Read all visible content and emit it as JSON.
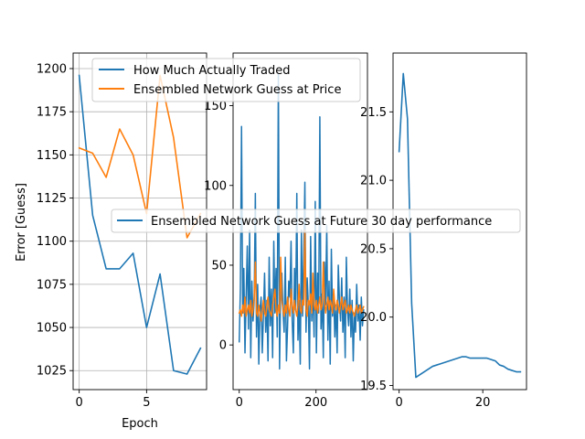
{
  "chart_data": [
    {
      "type": "line",
      "xlabel": "Epoch",
      "ylabel": "Error [Guess]",
      "grid": true,
      "xlim": [
        -0.45,
        9.45
      ],
      "ylim": [
        1014,
        1209
      ],
      "xticks": [
        0,
        5
      ],
      "yticks": [
        1025,
        1050,
        1075,
        1100,
        1125,
        1150,
        1175,
        1200
      ],
      "legend": "top-right",
      "x": [
        0,
        1,
        2,
        3,
        4,
        5,
        6,
        7,
        8,
        9
      ],
      "series": [
        {
          "name": "How Much Actually Traded",
          "color": "#1f77b4",
          "values": [
            1196,
            1115,
            1084,
            1084,
            1093,
            1050,
            1081,
            1025,
            1023,
            1038
          ]
        },
        {
          "name": "Ensembled Network Guess at Price",
          "color": "#ff7f0e",
          "values": [
            1154,
            1151,
            1137,
            1165,
            1150,
            1116,
            1196,
            1160,
            1102,
            1116
          ]
        }
      ]
    },
    {
      "type": "line",
      "grid": false,
      "xlim": [
        -16,
        334
      ],
      "ylim": [
        -28,
        183
      ],
      "xticks": [
        0,
        200
      ],
      "yticks": [
        0,
        50,
        100,
        150
      ],
      "series": [
        {
          "color": "#1f77b4",
          "x": [
            0,
            3,
            6,
            9,
            12,
            15,
            18,
            21,
            24,
            27,
            30,
            33,
            36,
            39,
            42,
            45,
            48,
            51,
            54,
            57,
            60,
            63,
            66,
            69,
            72,
            75,
            78,
            81,
            84,
            87,
            90,
            93,
            96,
            99,
            102,
            105,
            108,
            111,
            114,
            117,
            120,
            123,
            126,
            129,
            132,
            135,
            138,
            141,
            144,
            147,
            150,
            153,
            156,
            159,
            162,
            165,
            168,
            171,
            174,
            177,
            180,
            183,
            186,
            189,
            192,
            195,
            198,
            201,
            204,
            207,
            210,
            213,
            216,
            219,
            222,
            225,
            228,
            231,
            234,
            237,
            240,
            243,
            246,
            249,
            252,
            255,
            258,
            261,
            264,
            267,
            270,
            273,
            276,
            279,
            282,
            285,
            288,
            291,
            294,
            297,
            300,
            303,
            306,
            309,
            312,
            315,
            318,
            321,
            324
          ],
          "values": [
            2,
            35,
            137,
            20,
            48,
            -5,
            30,
            62,
            10,
            72,
            -8,
            40,
            15,
            28,
            95,
            5,
            38,
            -12,
            22,
            30,
            -5,
            18,
            45,
            8,
            28,
            -10,
            55,
            12,
            35,
            -8,
            65,
            20,
            48,
            5,
            170,
            -15,
            38,
            45,
            22,
            8,
            55,
            -10,
            12,
            40,
            30,
            65,
            15,
            -5,
            48,
            22,
            95,
            3,
            28,
            -12,
            72,
            18,
            55,
            102,
            8,
            42,
            25,
            -15,
            68,
            15,
            38,
            5,
            90,
            -5,
            45,
            20,
            143,
            10,
            32,
            -8,
            52,
            25,
            75,
            3,
            40,
            -12,
            60,
            18,
            32,
            5,
            25,
            -5,
            50,
            28,
            15,
            42,
            8,
            30,
            -8,
            55,
            22,
            12,
            35,
            5,
            28,
            -10,
            20,
            8,
            38,
            15,
            25,
            3,
            30,
            12,
            22
          ]
        },
        {
          "color": "#ff7f0e",
          "x": [
            0,
            3,
            6,
            9,
            12,
            15,
            18,
            21,
            24,
            27,
            30,
            33,
            36,
            39,
            42,
            45,
            48,
            51,
            54,
            57,
            60,
            63,
            66,
            69,
            72,
            75,
            78,
            81,
            84,
            87,
            90,
            93,
            96,
            99,
            102,
            105,
            108,
            111,
            114,
            117,
            120,
            123,
            126,
            129,
            132,
            135,
            138,
            141,
            144,
            147,
            150,
            153,
            156,
            159,
            162,
            165,
            168,
            171,
            174,
            177,
            180,
            183,
            186,
            189,
            192,
            195,
            198,
            201,
            204,
            207,
            210,
            213,
            216,
            219,
            222,
            225,
            228,
            231,
            234,
            237,
            240,
            243,
            246,
            249,
            252,
            255,
            258,
            261,
            264,
            267,
            270,
            273,
            276,
            279,
            282,
            285,
            288,
            291,
            294,
            297,
            300,
            303,
            306,
            309,
            312,
            315,
            318,
            321,
            324
          ],
          "values": [
            20,
            22,
            18,
            25,
            20,
            30,
            18,
            22,
            25,
            20,
            28,
            18,
            22,
            30,
            52,
            20,
            18,
            25,
            20,
            15,
            22,
            28,
            20,
            18,
            25,
            30,
            22,
            20,
            18,
            25,
            30,
            35,
            22,
            18,
            25,
            20,
            55,
            28,
            22,
            18,
            25,
            20,
            30,
            22,
            18,
            35,
            25,
            20,
            28,
            22,
            18,
            25,
            38,
            22,
            20,
            28,
            25,
            72,
            22,
            18,
            28,
            25,
            32,
            20,
            45,
            25,
            22,
            28,
            20,
            25,
            30,
            22,
            25,
            52,
            28,
            20,
            25,
            30,
            22,
            28,
            25,
            20,
            35,
            25,
            22,
            28,
            25,
            20,
            25,
            30,
            22,
            25,
            28,
            20,
            22,
            25,
            20,
            25,
            22,
            20,
            18,
            22,
            25,
            20,
            22,
            25,
            20,
            22,
            24
          ]
        }
      ]
    },
    {
      "type": "line",
      "grid": false,
      "xlim": [
        -1.45,
        30.45
      ],
      "ylim": [
        19.47,
        21.93
      ],
      "xticks": [
        0,
        20
      ],
      "yticks": [
        19.5,
        20.0,
        20.5,
        21.0,
        21.5
      ],
      "legend": "center",
      "x": [
        0,
        1,
        2,
        3,
        4,
        5,
        6,
        7,
        8,
        9,
        10,
        11,
        12,
        13,
        14,
        15,
        16,
        17,
        18,
        19,
        20,
        21,
        22,
        23,
        24,
        25,
        26,
        27,
        28,
        29
      ],
      "series": [
        {
          "name": "Ensembled Network Guess at Future 30 day performance",
          "color": "#1f77b4",
          "values": [
            21.21,
            21.78,
            21.45,
            20.1,
            19.56,
            19.58,
            19.6,
            19.62,
            19.64,
            19.65,
            19.66,
            19.67,
            19.68,
            19.69,
            19.7,
            19.71,
            19.71,
            19.7,
            19.7,
            19.7,
            19.7,
            19.7,
            19.69,
            19.68,
            19.65,
            19.64,
            19.62,
            19.61,
            19.6,
            19.6
          ]
        }
      ]
    }
  ]
}
